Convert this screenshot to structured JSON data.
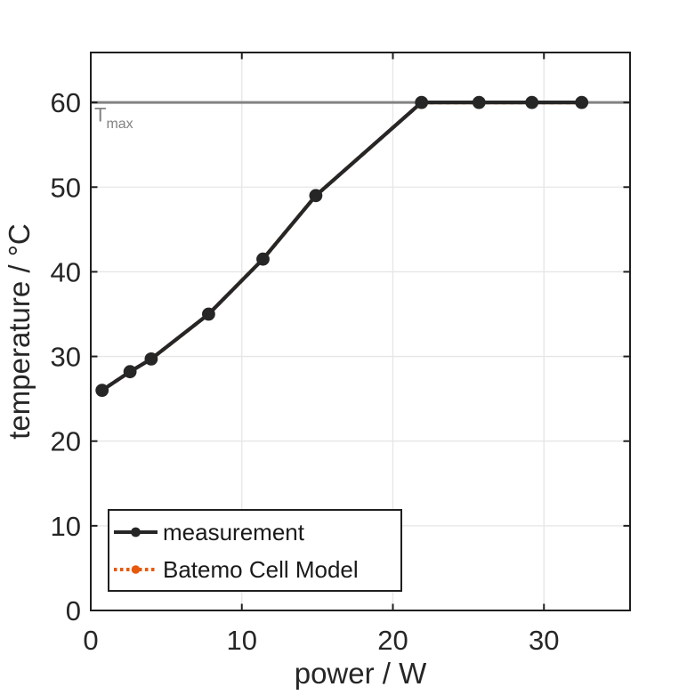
{
  "figure": {
    "background": "#ffffff",
    "tick_text_color": "#262626",
    "axis_color": "#1f1f1f",
    "grid_color": "#e6e6e6"
  },
  "chart_data": {
    "type": "line",
    "title": "",
    "xlabel": "power / W",
    "ylabel": "temperature / °C",
    "xlim": [
      0,
      35.7
    ],
    "ylim": [
      0,
      65.9
    ],
    "xticks": [
      0,
      10,
      20,
      30
    ],
    "yticks": [
      0,
      10,
      20,
      30,
      40,
      50,
      60
    ],
    "grid": true,
    "legend_position": "bottom-left",
    "annotations": [
      {
        "type": "hline",
        "y": 60,
        "label_main": "T",
        "label_sub": "max",
        "color": "#828282"
      }
    ],
    "series": [
      {
        "name": "Batemo Cell Model",
        "color": "#e8590c",
        "line_style": "dotted",
        "marker": "circle",
        "hidden_behind_measurement": true,
        "x": [
          0.75,
          2.6,
          4.0,
          7.8,
          11.4,
          14.9,
          21.9,
          25.7,
          29.2,
          32.5
        ],
        "y": [
          26.0,
          28.2,
          29.7,
          35.0,
          41.5,
          49.0,
          60.0,
          60.0,
          60.0,
          60.0
        ]
      },
      {
        "name": "measurement",
        "color": "#262626",
        "line_style": "solid",
        "marker": "circle",
        "x": [
          0.75,
          2.6,
          4.0,
          7.8,
          11.4,
          14.9,
          21.9,
          25.7,
          29.2,
          32.5
        ],
        "y": [
          26.0,
          28.2,
          29.7,
          35.0,
          41.5,
          49.0,
          60.0,
          60.0,
          60.0,
          60.0
        ]
      }
    ],
    "legend": {
      "entries": [
        {
          "label": "measurement",
          "color": "#262626",
          "line_style": "solid"
        },
        {
          "label": "Batemo Cell Model",
          "color": "#e8590c",
          "line_style": "dotted"
        }
      ]
    }
  }
}
